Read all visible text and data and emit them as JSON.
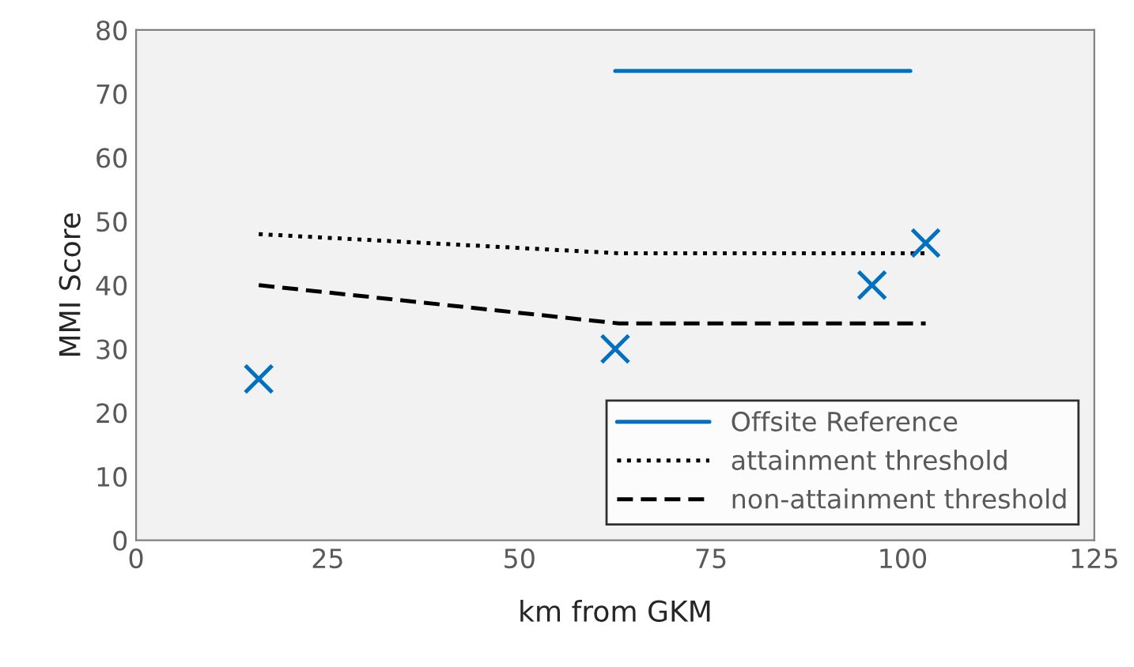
{
  "chart_data": {
    "type": "line",
    "xlabel": "km from GKM",
    "ylabel": "MMI Score",
    "xlim": [
      0,
      125
    ],
    "xticks": [
      0,
      25,
      50,
      75,
      100,
      125
    ],
    "ylim": [
      0,
      80
    ],
    "yticks": [
      0,
      10,
      20,
      30,
      40,
      50,
      60,
      70,
      80
    ],
    "grid": false,
    "legend": "bottom right",
    "series": [
      {
        "type": "scatter",
        "x": [
          16,
          62.5,
          96,
          103
        ],
        "values": [
          25.3,
          30,
          40,
          46.6
        ],
        "color": "#0070c0",
        "marker": "cross"
      },
      {
        "name": "Offsite Reference",
        "x": [
          62.5,
          101
        ],
        "values": [
          73.6,
          73.6
        ],
        "color": "#0070c0",
        "line_style": "solid",
        "marker": "none"
      },
      {
        "name": "attainment threshold",
        "x": [
          16,
          63,
          103
        ],
        "values": [
          48,
          45,
          45
        ],
        "color": "#000000",
        "line_style": "dotted",
        "marker": "none"
      },
      {
        "name": "non-attainment threshold",
        "x": [
          16,
          63,
          103
        ],
        "values": [
          40,
          34,
          34
        ],
        "color": "#000000",
        "line_style": "dashed",
        "marker": "none"
      }
    ]
  }
}
